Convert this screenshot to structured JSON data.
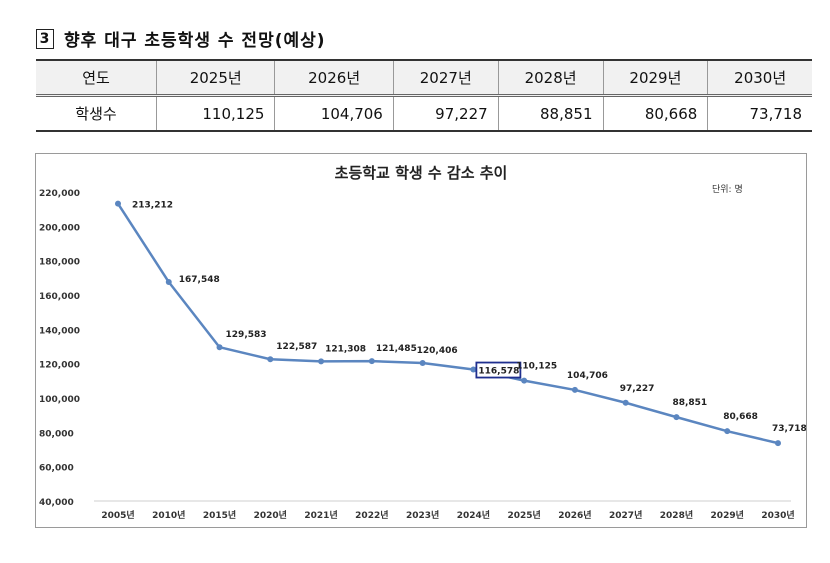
{
  "section": {
    "number": "3",
    "title": "향후 대구 초등학생 수 전망(예상)"
  },
  "table": {
    "headers": [
      "연도",
      "2025년",
      "2026년",
      "2027년",
      "2028년",
      "2029년",
      "2030년"
    ],
    "row_label": "학생수",
    "values": [
      "110,125",
      "104,706",
      "97,227",
      "88,851",
      "80,668",
      "73,718"
    ]
  },
  "chart_data": {
    "type": "line",
    "title": "초등학교 학생 수 감소 추이",
    "unit_label": "단위: 명",
    "categories": [
      "2005년",
      "2010년",
      "2015년",
      "2020년",
      "2021년",
      "2022년",
      "2023년",
      "2024년",
      "2025년",
      "2026년",
      "2027년",
      "2028년",
      "2029년",
      "2030년"
    ],
    "values": [
      213212,
      167548,
      129583,
      122587,
      121308,
      121485,
      120406,
      116578,
      110125,
      104706,
      97227,
      88851,
      80668,
      73718
    ],
    "value_labels": [
      "213,212",
      "167,548",
      "129,583",
      "122,587",
      "121,308",
      "121,485",
      "120,406",
      "116,578",
      "110,125",
      "104,706",
      "97,227",
      "88,851",
      "80,668",
      "73,718"
    ],
    "highlighted_index": 7,
    "ylim": [
      40000,
      220000
    ],
    "ytick_labels": [
      "220,000",
      "200,000",
      "180,000",
      "160,000",
      "140,000",
      "120,000",
      "100,000",
      "80,000",
      "60,000",
      "40,000"
    ],
    "grid": false,
    "line_color": "#5b86c0",
    "highlight_color": "#1f2f8f"
  }
}
